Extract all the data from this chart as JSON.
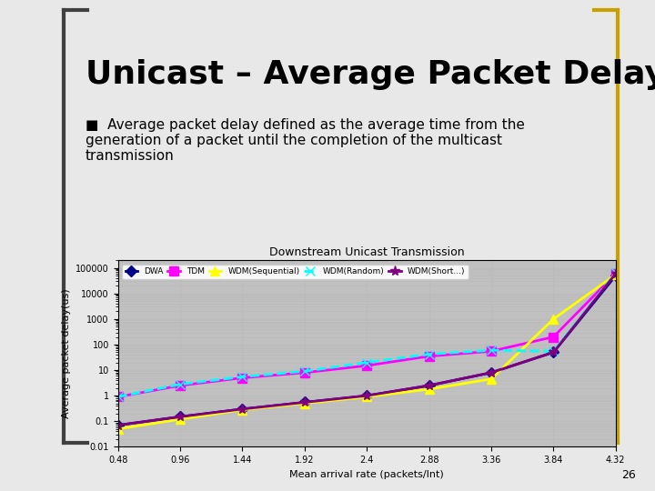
{
  "title": "Downstream Unicast Transmission",
  "ylabel": "Average packet delay(us)",
  "xlabel": "Mean arrival rate (packets/Int)",
  "x_values": [
    0.48,
    0.96,
    1.44,
    1.92,
    2.4,
    2.88,
    3.36,
    3.84,
    4.32
  ],
  "series": [
    {
      "label": "DWA",
      "color": "#00008B",
      "marker": "D",
      "markersize": 6,
      "linewidth": 2,
      "linestyle": "-",
      "values": [
        0.07,
        0.15,
        0.3,
        0.55,
        1.0,
        2.5,
        8.0,
        50,
        50000
      ]
    },
    {
      "label": "TDM",
      "color": "#FF00FF",
      "marker": "s",
      "markersize": 7,
      "linewidth": 2,
      "linestyle": "-",
      "values": [
        0.9,
        2.5,
        5.0,
        8.0,
        15.0,
        35.0,
        55.0,
        200,
        60000
      ]
    },
    {
      "label": "WDM(Sequential)",
      "color": "#FFFF00",
      "marker": "^",
      "markersize": 7,
      "linewidth": 2,
      "linestyle": "-",
      "values": [
        0.05,
        0.12,
        0.28,
        0.5,
        0.9,
        1.8,
        4.5,
        1000,
        55000
      ]
    },
    {
      "label": "WDM(Random)",
      "color": "#00FFFF",
      "marker": "x",
      "markersize": 7,
      "linewidth": 2,
      "linestyle": "--",
      "values": [
        0.9,
        2.8,
        5.5,
        9.0,
        20.0,
        42.0,
        60.0,
        55.0,
        65000
      ]
    },
    {
      "label": "WDM(Short...)",
      "color": "#800080",
      "marker": "*",
      "markersize": 8,
      "linewidth": 2,
      "linestyle": "-",
      "values": [
        0.07,
        0.15,
        0.3,
        0.55,
        1.0,
        2.5,
        8.0,
        50,
        60000
      ]
    }
  ],
  "ylim_log": [
    0.01,
    200000
  ],
  "background_color": "#C0C0C0",
  "slide_bg": "#E8E8E8",
  "title_fontsize": 26,
  "subtitle_fontsize": 18,
  "axis_fontsize": 8,
  "legend_fontsize": 7,
  "page_number": "26"
}
